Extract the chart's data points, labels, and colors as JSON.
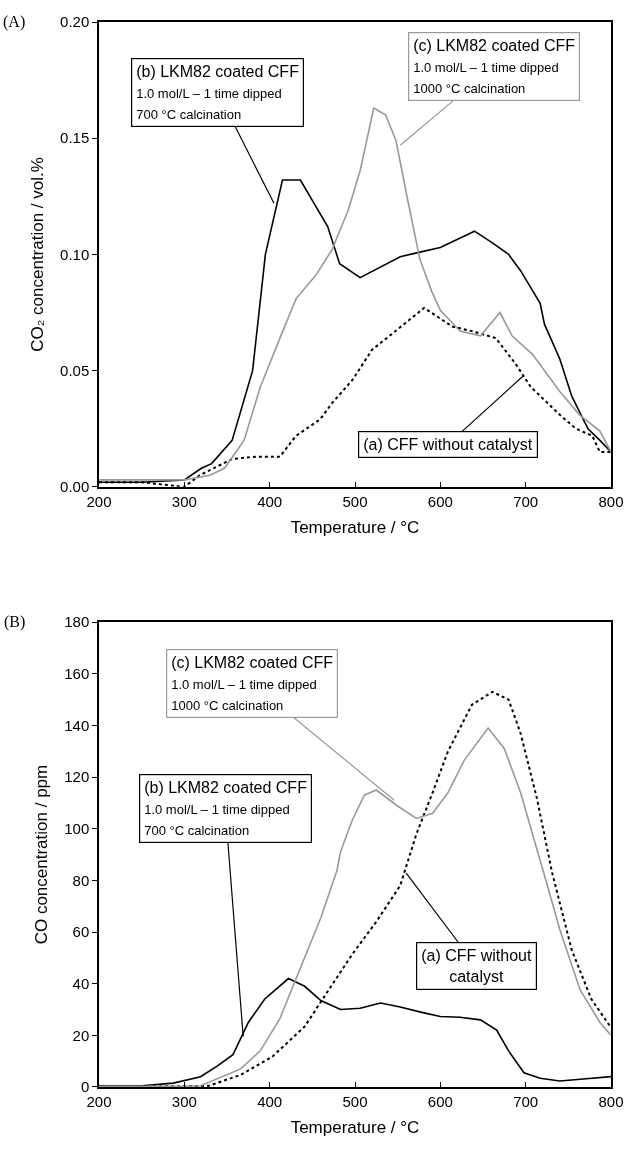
{
  "chart_data": [
    {
      "type": "line",
      "title": "(A)",
      "xlabel": "Temperature / °C",
      "ylabel": "CO₂ concentration / vol.%",
      "xlim": [
        200,
        800
      ],
      "xticks": [
        200,
        300,
        400,
        500,
        600,
        700,
        800
      ],
      "ylim": [
        0,
        0.2
      ],
      "yticks": [
        {
          "value": 0,
          "label": "0.00"
        },
        {
          "value": 0.05,
          "label": "0.05"
        },
        {
          "value": 0.1,
          "label": "0.10"
        },
        {
          "value": 0.15,
          "label": "0.15"
        },
        {
          "value": 0.2,
          "label": "0.20"
        }
      ],
      "grid": false,
      "marker": "none",
      "series": [
        {
          "color": "#000000",
          "line_style": "dotted",
          "x": [
            200,
            250,
            300,
            318,
            356,
            384,
            412,
            431,
            459,
            473,
            497,
            520,
            544,
            581,
            614,
            637,
            665,
            688,
            706,
            740,
            759,
            778,
            787,
            800
          ],
          "values": [
            0.002,
            0.002,
            0.0,
            0.005,
            0.012,
            0.013,
            0.013,
            0.022,
            0.029,
            0.036,
            0.046,
            0.059,
            0.066,
            0.077,
            0.069,
            0.067,
            0.064,
            0.053,
            0.043,
            0.031,
            0.025,
            0.022,
            0.015,
            0.015
          ]
        },
        {
          "color": "#000000",
          "line_style": "solid",
          "x": [
            200,
            250,
            300,
            320,
            332,
            356,
            380,
            395,
            415,
            436,
            468,
            482,
            506,
            553,
            576,
            600,
            640,
            661,
            680,
            694,
            717,
            722,
            740,
            754,
            773,
            787,
            800
          ],
          "values": [
            0.002,
            0.002,
            0.003,
            0.008,
            0.01,
            0.02,
            0.05,
            0.1,
            0.132,
            0.132,
            0.112,
            0.096,
            0.09,
            0.099,
            0.101,
            0.103,
            0.11,
            0.105,
            0.1,
            0.093,
            0.079,
            0.07,
            0.055,
            0.039,
            0.025,
            0.02,
            0.015
          ]
        },
        {
          "color": "#999999",
          "line_style": "solid",
          "x": [
            200,
            250,
            300,
            330,
            347,
            370,
            389,
            412,
            431,
            454,
            473,
            492,
            506,
            522,
            536,
            548,
            562,
            576,
            590,
            600,
            623,
            647,
            670,
            684,
            708,
            740,
            763,
            787,
            800
          ],
          "values": [
            0.003,
            0.003,
            0.003,
            0.005,
            0.008,
            0.02,
            0.043,
            0.064,
            0.081,
            0.091,
            0.102,
            0.119,
            0.136,
            0.163,
            0.16,
            0.149,
            0.123,
            0.098,
            0.084,
            0.076,
            0.067,
            0.065,
            0.075,
            0.065,
            0.057,
            0.041,
            0.031,
            0.024,
            0.015
          ]
        }
      ],
      "annotations": [
        {
          "text": "(a) CFF without catalyst",
          "x": 698,
          "y": 0.048
        },
        {
          "text": "(b) LKM82 coated CFF\n1.0 mol/L – 1 time dipped\n700 °C calcination",
          "x": 405,
          "y": 0.122
        },
        {
          "text": "(c) LKM82 coated CFF\n1.0 mol/L – 1 time dipped\n1000 °C calcination",
          "x": 553,
          "y": 0.147
        }
      ]
    },
    {
      "type": "line",
      "title": "(B)",
      "xlabel": "Temperature / °C",
      "ylabel": "CO concentration / ppm",
      "xlim": [
        200,
        800
      ],
      "xticks": [
        200,
        300,
        400,
        500,
        600,
        700,
        800
      ],
      "ylim": [
        0,
        180
      ],
      "yticks": [
        0,
        20,
        40,
        60,
        80,
        100,
        120,
        140,
        160,
        180
      ],
      "grid": false,
      "marker": "none",
      "series": [
        {
          "color": "#000000",
          "line_style": "dotted",
          "x": [
            200,
            250,
            300,
            329,
            366,
            403,
            441,
            469,
            497,
            525,
            553,
            572,
            591,
            609,
            637,
            661,
            680,
            694,
            713,
            731,
            754,
            777,
            800
          ],
          "values": [
            0.3,
            0.3,
            0.3,
            0.5,
            4.7,
            11.7,
            23.4,
            37.5,
            51.5,
            64,
            78,
            98,
            114,
            130,
            148,
            153,
            150,
            137,
            112,
            83,
            53,
            34,
            23
          ]
        },
        {
          "color": "#000000",
          "line_style": "solid",
          "x": [
            200,
            250,
            287,
            319,
            338,
            357,
            375,
            394,
            422,
            441,
            460,
            483,
            506,
            530,
            553,
            577,
            600,
            623,
            647,
            666,
            680,
            698,
            717,
            740,
            764,
            800
          ],
          "values": [
            0.5,
            0.5,
            1.5,
            4,
            8,
            12.5,
            25,
            34,
            42,
            39,
            33.5,
            30,
            30.5,
            32.5,
            31,
            29,
            27.3,
            27,
            26,
            22,
            14,
            5.5,
            3.4,
            2.3,
            3,
            4
          ]
        },
        {
          "color": "#999999",
          "line_style": "solid",
          "x": [
            200,
            250,
            300,
            319,
            366,
            389,
            412,
            431,
            460,
            479,
            483,
            497,
            511,
            525,
            549,
            572,
            591,
            609,
            628,
            656,
            675,
            694,
            708,
            722,
            740,
            764,
            787,
            800
          ],
          "values": [
            0.3,
            0.3,
            0.3,
            0.5,
            7,
            14,
            26.5,
            42,
            65.5,
            84,
            91,
            103.5,
            113,
            115,
            109,
            104,
            106,
            114,
            126.5,
            139,
            131,
            114,
            98,
            82,
            61,
            37.5,
            25,
            20
          ]
        }
      ],
      "annotations": [
        {
          "text": "(a) CFF without\ncatalyst",
          "x": 560,
          "y": 82.8
        },
        {
          "text": "(b) LKM82 coated CFF\n1.0 mol/L – 1 time dipped\n700 °C calcination",
          "x": 369,
          "y": 19.5
        },
        {
          "text": "(c) LKM82 coated CFF\n1.0 mol/L – 1 time dipped\n1000 °C calcination",
          "x": 546,
          "y": 111
        }
      ]
    }
  ]
}
